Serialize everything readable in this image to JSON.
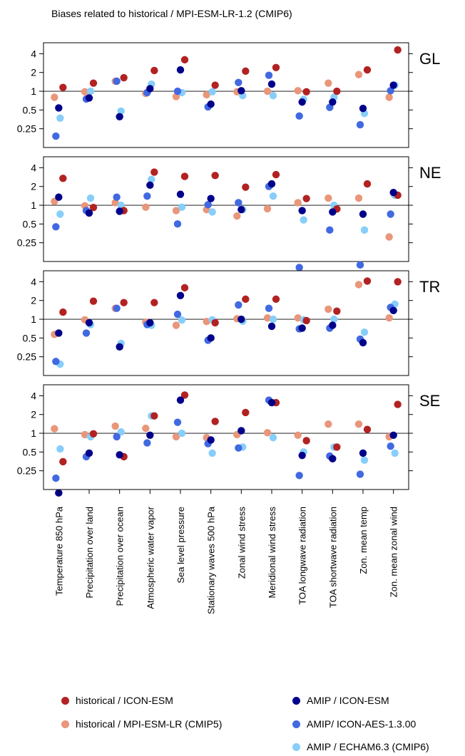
{
  "title": "Biases related to historical / MPI-ESM-LR-1.2 (CMIP6)",
  "chart_data": {
    "type": "scatter",
    "y_scale": "log2",
    "ylim": [
      0.125,
      6
    ],
    "yticks": [
      0.25,
      0.5,
      1,
      2,
      4
    ],
    "ytick_labels": [
      "0.25",
      "0.5",
      "1",
      "2",
      "4"
    ],
    "reference_line": 1,
    "categories": [
      "Temperature 850 hPa",
      "Precipitation over land",
      "Precipitation over ocean",
      "Atmospheric water vapor",
      "Sea level pressure",
      "Stationary waves 500 hPa",
      "Zonal wind stress",
      "Meridional wind stress",
      "TOA longwave radiation",
      "TOA shortwave radiation",
      "Zon. mean temp",
      "Zon. mean zonal wind"
    ],
    "series": [
      {
        "name": "historical / ICON-ESM",
        "color": "#b22222",
        "offset": 3
      },
      {
        "name": "historical / MPI-ESM-LR (CMIP5)",
        "color": "#e9967a",
        "offset": -3
      },
      {
        "name": "AMIP / ICON-ESM",
        "color": "#00008b",
        "offset": 0
      },
      {
        "name": "AMIP/ ICON-AES-1.3.00",
        "color": "#4169e1",
        "offset": -2
      },
      {
        "name": "AMIP / ECHAM6.3 (CMIP6)",
        "color": "#87cefa",
        "offset": 1
      }
    ],
    "panels": [
      {
        "label": "GL",
        "values": [
          [
            1.15,
            1.35,
            1.65,
            2.15,
            3.2,
            1.25,
            2.1,
            2.4,
            0.98,
            1.0,
            2.2,
            4.6
          ],
          [
            0.8,
            0.98,
            1.45,
            0.92,
            0.82,
            0.88,
            0.98,
            1.0,
            1.02,
            1.35,
            1.85,
            0.8
          ],
          [
            0.54,
            0.78,
            0.39,
            1.1,
            2.2,
            0.62,
            1.02,
            1.3,
            0.67,
            0.67,
            0.53,
            1.25
          ],
          [
            0.19,
            0.75,
            1.45,
            0.95,
            1.0,
            0.56,
            1.38,
            1.8,
            0.4,
            0.55,
            0.29,
            1.02
          ],
          [
            0.37,
            1.0,
            0.48,
            1.3,
            0.95,
            0.98,
            0.85,
            0.85,
            0.74,
            0.8,
            0.44,
            1.25
          ]
        ]
      },
      {
        "label": "NE",
        "values": [
          [
            2.7,
            0.92,
            0.82,
            3.4,
            2.9,
            3.0,
            1.95,
            3.1,
            1.28,
            0.87,
            2.2,
            1.45
          ],
          [
            1.15,
            0.98,
            1.1,
            0.93,
            0.82,
            0.85,
            0.67,
            0.88,
            1.1,
            1.3,
            1.3,
            0.31
          ],
          [
            1.35,
            0.75,
            0.8,
            2.1,
            1.5,
            1.28,
            0.85,
            2.2,
            0.82,
            0.78,
            0.72,
            1.6
          ],
          [
            0.45,
            0.82,
            1.35,
            1.4,
            0.5,
            1.02,
            1.1,
            2.0,
            0.1,
            0.4,
            0.11,
            0.72
          ],
          [
            0.72,
            1.3,
            1.0,
            2.6,
            0.93,
            0.78,
            0.85,
            1.4,
            0.58,
            1.0,
            0.4,
            1.45
          ]
        ]
      },
      {
        "label": "TR",
        "values": [
          [
            1.3,
            1.95,
            1.85,
            1.85,
            3.2,
            0.88,
            2.1,
            2.1,
            0.95,
            1.35,
            4.1,
            4.0
          ],
          [
            0.57,
            0.98,
            1.5,
            0.9,
            0.8,
            0.92,
            1.02,
            1.05,
            1.05,
            1.45,
            3.6,
            1.05
          ],
          [
            0.6,
            0.88,
            0.36,
            0.88,
            2.4,
            0.5,
            1.0,
            0.77,
            0.72,
            0.8,
            0.42,
            1.38
          ],
          [
            0.21,
            0.6,
            1.5,
            0.82,
            1.2,
            0.46,
            1.7,
            1.5,
            0.7,
            0.72,
            0.48,
            1.55
          ],
          [
            0.19,
            0.82,
            0.41,
            0.8,
            0.97,
            0.98,
            0.93,
            1.0,
            0.98,
            1.0,
            0.62,
            1.75
          ]
        ]
      },
      {
        "label": "SE",
        "values": [
          [
            0.35,
            0.98,
            0.42,
            1.9,
            4.1,
            1.55,
            2.15,
            3.1,
            0.76,
            0.6,
            1.15,
            2.9
          ],
          [
            1.18,
            0.95,
            1.3,
            1.2,
            0.88,
            0.85,
            0.95,
            1.02,
            0.93,
            1.4,
            1.4,
            0.88
          ],
          [
            0.11,
            0.48,
            0.45,
            0.93,
            3.4,
            0.78,
            1.1,
            3.1,
            0.44,
            0.39,
            0.48,
            0.93
          ],
          [
            0.19,
            0.42,
            0.88,
            0.7,
            1.5,
            0.68,
            0.58,
            3.4,
            0.21,
            0.43,
            0.22,
            0.62
          ],
          [
            0.56,
            0.88,
            1.05,
            1.9,
            1.0,
            0.48,
            0.6,
            0.85,
            0.5,
            0.6,
            0.37,
            0.48
          ]
        ]
      }
    ]
  },
  "legend": [
    "historical / ICON-ESM",
    "historical / MPI-ESM-LR (CMIP5)",
    "AMIP / ICON-ESM",
    "AMIP/ ICON-AES-1.3.00",
    "AMIP / ECHAM6.3 (CMIP6)"
  ]
}
